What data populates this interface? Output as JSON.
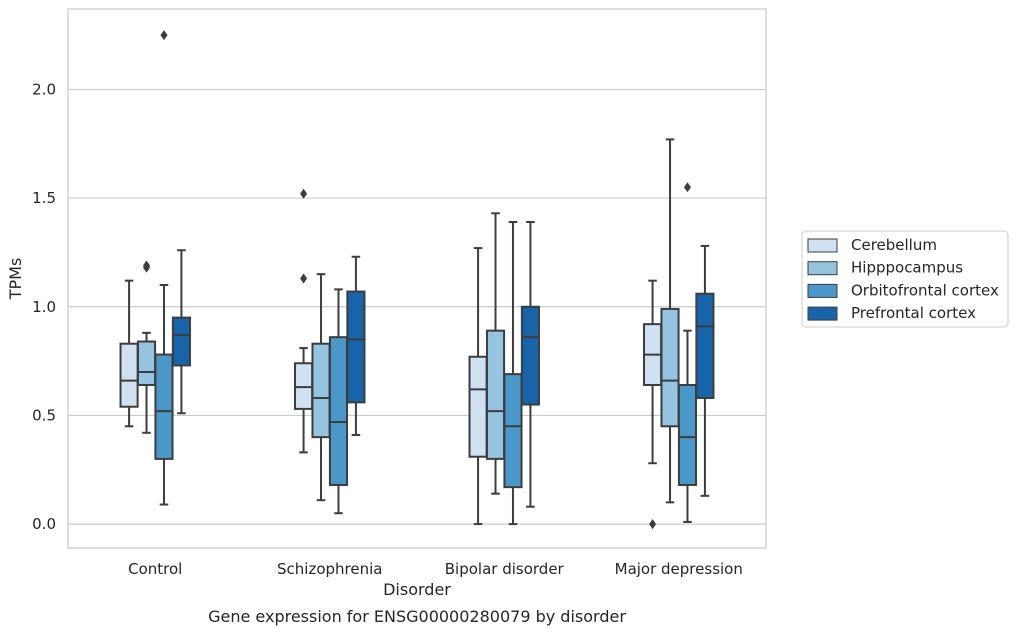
{
  "chart_data": {
    "type": "box",
    "title": "",
    "caption": "Gene expression for ENSG00000280079 by disorder",
    "xlabel": "Disorder",
    "ylabel": "TPMs",
    "ylim": [
      -0.11,
      2.37
    ],
    "yticks": [
      0.0,
      0.5,
      1.0,
      1.5,
      2.0
    ],
    "ytick_labels": [
      "0.0",
      "0.5",
      "1.0",
      "1.5",
      "2.0"
    ],
    "grid": "horizontal",
    "legend_position": "right",
    "categories": [
      "Control",
      "Schizophrenia",
      "Bipolar disorder",
      "Major depression"
    ],
    "series": [
      {
        "name": "Cerebellum",
        "color": "#d0e1f2",
        "boxes": [
          {
            "whislo": 0.45,
            "q1": 0.54,
            "med": 0.66,
            "q3": 0.83,
            "whishi": 1.12,
            "fliers": []
          },
          {
            "whislo": 0.33,
            "q1": 0.53,
            "med": 0.63,
            "q3": 0.74,
            "whishi": 0.81,
            "fliers": [
              1.13,
              1.52
            ]
          },
          {
            "whislo": 0.0,
            "q1": 0.31,
            "med": 0.62,
            "q3": 0.77,
            "whishi": 1.27,
            "fliers": []
          },
          {
            "whislo": 0.28,
            "q1": 0.64,
            "med": 0.78,
            "q3": 0.92,
            "whishi": 1.12,
            "fliers": [
              0.0
            ]
          }
        ]
      },
      {
        "name": "Hipppocampus",
        "color": "#94c4df",
        "boxes": [
          {
            "whislo": 0.42,
            "q1": 0.64,
            "med": 0.7,
            "q3": 0.84,
            "whishi": 0.88,
            "fliers": [
              1.18,
              1.19
            ]
          },
          {
            "whislo": 0.11,
            "q1": 0.4,
            "med": 0.58,
            "q3": 0.83,
            "whishi": 1.15,
            "fliers": []
          },
          {
            "whislo": 0.14,
            "q1": 0.3,
            "med": 0.52,
            "q3": 0.89,
            "whishi": 1.43,
            "fliers": []
          },
          {
            "whislo": 0.1,
            "q1": 0.45,
            "med": 0.66,
            "q3": 0.99,
            "whishi": 1.77,
            "fliers": []
          }
        ]
      },
      {
        "name": "Orbitofrontal cortex",
        "color": "#4a98c9",
        "boxes": [
          {
            "whislo": 0.09,
            "q1": 0.3,
            "med": 0.52,
            "q3": 0.78,
            "whishi": 1.1,
            "fliers": [
              2.25
            ]
          },
          {
            "whislo": 0.05,
            "q1": 0.18,
            "med": 0.47,
            "q3": 0.86,
            "whishi": 1.08,
            "fliers": []
          },
          {
            "whislo": 0.0,
            "q1": 0.17,
            "med": 0.45,
            "q3": 0.69,
            "whishi": 1.39,
            "fliers": []
          },
          {
            "whislo": 0.01,
            "q1": 0.18,
            "med": 0.4,
            "q3": 0.64,
            "whishi": 0.89,
            "fliers": [
              1.55
            ]
          }
        ]
      },
      {
        "name": "Prefrontal cortex",
        "color": "#1764ab",
        "boxes": [
          {
            "whislo": 0.51,
            "q1": 0.73,
            "med": 0.87,
            "q3": 0.95,
            "whishi": 1.26,
            "fliers": []
          },
          {
            "whislo": 0.41,
            "q1": 0.56,
            "med": 0.85,
            "q3": 1.07,
            "whishi": 1.23,
            "fliers": []
          },
          {
            "whislo": 0.08,
            "q1": 0.55,
            "med": 0.86,
            "q3": 1.0,
            "whishi": 1.39,
            "fliers": []
          },
          {
            "whislo": 0.13,
            "q1": 0.58,
            "med": 0.91,
            "q3": 1.06,
            "whishi": 1.28,
            "fliers": []
          }
        ]
      }
    ]
  }
}
